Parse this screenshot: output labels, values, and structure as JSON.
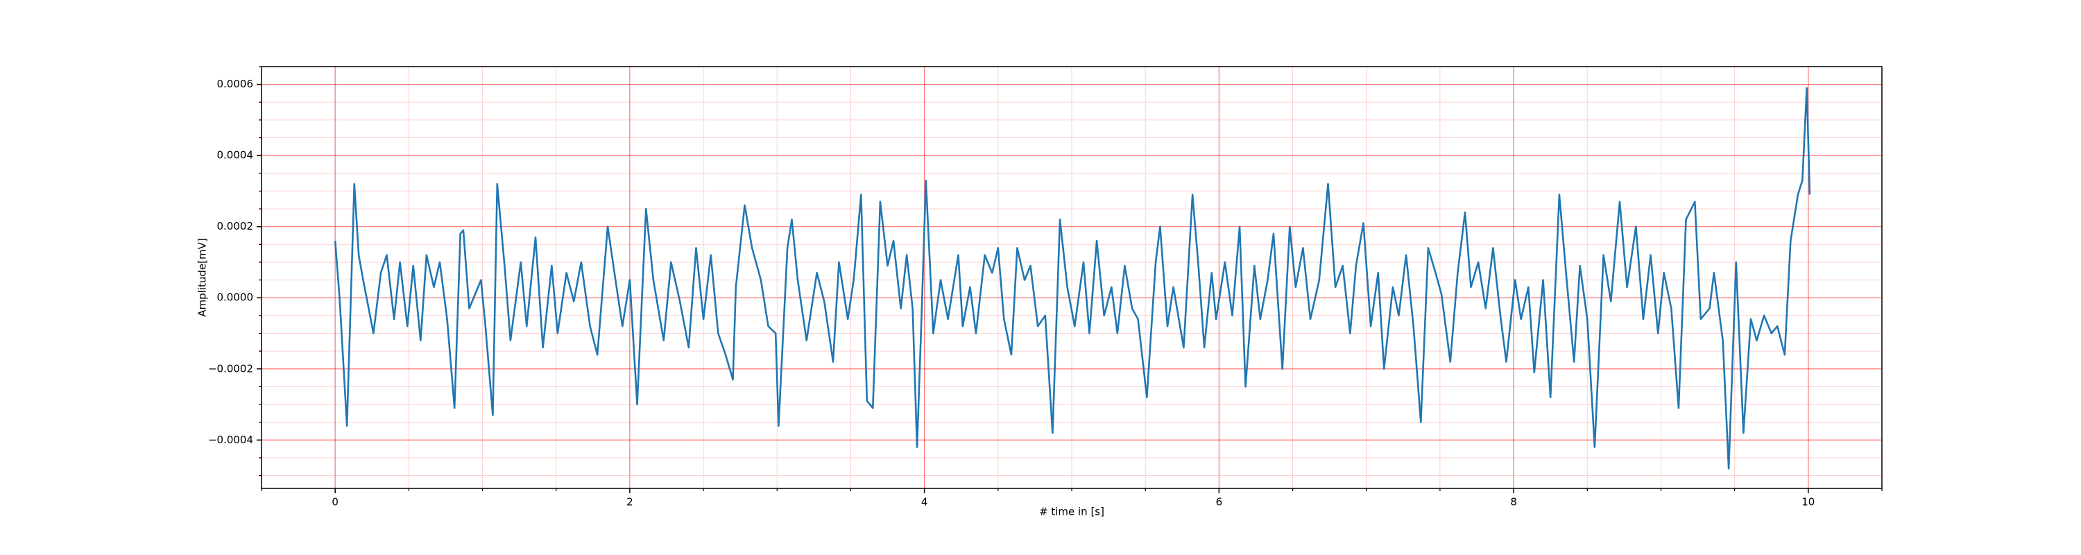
{
  "chart_data": {
    "type": "line",
    "xlabel": "# time in [s]",
    "ylabel": "Amplitude[mV]",
    "color": "#1f77b4",
    "major_grid_color": "#ff0000",
    "minor_grid_color": "#ffb3b3",
    "grid": true,
    "minor_grid": true,
    "xlim": [
      -0.5,
      10.5
    ],
    "ylim": [
      -0.000536,
      0.00065
    ],
    "xticks": [
      0,
      2,
      4,
      6,
      8,
      10
    ],
    "yticks": [
      {
        "value": -0.0004,
        "label": "−0.0004"
      },
      {
        "value": -0.0002,
        "label": "−0.0002"
      },
      {
        "value": 0,
        "label": "0.0000"
      },
      0.0002,
      0.0004,
      0.0006
    ],
    "xticks_minor": [
      -0.5,
      0.5,
      1,
      1.5,
      2.5,
      3,
      3.5,
      4.5,
      5,
      5.5,
      6.5,
      7,
      7.5,
      8.5,
      9,
      9.5,
      10.5
    ],
    "yticks_minor": [
      -0.0005,
      -0.00045,
      -0.00035,
      -0.0003,
      -0.00025,
      -0.00015,
      -0.0001,
      -5e-05,
      5e-05,
      0.0001,
      0.00015,
      0.00025,
      0.0003,
      0.00035,
      0.00045,
      0.0005,
      0.00055,
      0.00065
    ],
    "x": [
      0,
      0.03,
      0.08,
      0.13,
      0.16,
      0.19,
      0.26,
      0.31,
      0.35,
      0.4,
      0.44,
      0.49,
      0.53,
      0.58,
      0.62,
      0.67,
      0.71,
      0.76,
      0.81,
      0.85,
      0.87,
      0.91,
      0.99,
      1.02,
      1.07,
      1.1,
      1.15,
      1.19,
      1.26,
      1.3,
      1.36,
      1.41,
      1.47,
      1.51,
      1.57,
      1.62,
      1.67,
      1.73,
      1.78,
      1.85,
      1.91,
      1.95,
      2.0,
      2.05,
      2.11,
      2.16,
      2.23,
      2.28,
      2.34,
      2.4,
      2.45,
      2.5,
      2.55,
      2.6,
      2.65,
      2.7,
      2.72,
      2.78,
      2.83,
      2.89,
      2.94,
      2.99,
      3.01,
      3.07,
      3.1,
      3.14,
      3.2,
      3.27,
      3.32,
      3.38,
      3.42,
      3.48,
      3.52,
      3.57,
      3.61,
      3.65,
      3.7,
      3.75,
      3.79,
      3.84,
      3.88,
      3.92,
      3.95,
      3.98,
      4.01,
      4.06,
      4.11,
      4.16,
      4.23,
      4.26,
      4.31,
      4.35,
      4.41,
      4.46,
      4.5,
      4.54,
      4.59,
      4.63,
      4.68,
      4.72,
      4.77,
      4.82,
      4.87,
      4.92,
      4.97,
      5.02,
      5.08,
      5.12,
      5.17,
      5.22,
      5.27,
      5.31,
      5.36,
      5.41,
      5.45,
      5.51,
      5.57,
      5.6,
      5.65,
      5.69,
      5.76,
      5.82,
      5.86,
      5.9,
      5.95,
      5.98,
      6.04,
      6.09,
      6.14,
      6.18,
      6.24,
      6.28,
      6.33,
      6.37,
      6.43,
      6.48,
      6.52,
      6.57,
      6.62,
      6.68,
      6.74,
      6.79,
      6.84,
      6.89,
      6.93,
      6.98,
      7.03,
      7.08,
      7.12,
      7.18,
      7.22,
      7.27,
      7.32,
      7.37,
      7.42,
      7.47,
      7.51,
      7.57,
      7.62,
      7.67,
      7.71,
      7.76,
      7.81,
      7.86,
      7.91,
      7.95,
      8.01,
      8.05,
      8.1,
      8.14,
      8.2,
      8.25,
      8.31,
      8.36,
      8.41,
      8.45,
      8.5,
      8.55,
      8.61,
      8.66,
      8.72,
      8.77,
      8.83,
      8.88,
      8.93,
      8.98,
      9.02,
      9.07,
      9.12,
      9.17,
      9.23,
      9.27,
      9.33,
      9.36,
      9.42,
      9.46,
      9.51,
      9.56,
      9.61,
      9.65,
      9.7,
      9.75,
      9.79,
      9.84,
      9.88,
      9.93,
      9.96,
      9.99,
      10.01
    ],
    "values": [
      0.00016,
      0,
      -0.00036,
      0.00032,
      0.00012,
      5e-05,
      -0.0001,
      7e-05,
      0.00012,
      -6e-05,
      0.0001,
      -8e-05,
      9e-05,
      -0.00012,
      0.00012,
      3e-05,
      0.0001,
      -6e-05,
      -0.00031,
      0.00018,
      0.00019,
      -3e-05,
      5e-05,
      -8e-05,
      -0.00033,
      0.00032,
      9e-05,
      -0.00012,
      0.0001,
      -8e-05,
      0.00017,
      -0.00014,
      9e-05,
      -0.0001,
      7e-05,
      -1e-05,
      0.0001,
      -8e-05,
      -0.00016,
      0.0002,
      3e-05,
      -8e-05,
      5e-05,
      -0.0003,
      0.00025,
      5e-05,
      -0.00012,
      0.0001,
      -1e-05,
      -0.00014,
      0.00014,
      -6e-05,
      0.00012,
      -0.0001,
      -0.00016,
      -0.00023,
      3e-05,
      0.00026,
      0.00014,
      5e-05,
      -8e-05,
      -0.0001,
      -0.00036,
      0.00014,
      0.00022,
      5e-05,
      -0.00012,
      7e-05,
      -1e-05,
      -0.00018,
      0.0001,
      -6e-05,
      5e-05,
      0.00029,
      -0.00029,
      -0.00031,
      0.00027,
      9e-05,
      0.00016,
      -3e-05,
      0.00012,
      -3e-05,
      -0.00042,
      -6e-05,
      0.00033,
      -0.0001,
      5e-05,
      -6e-05,
      0.00012,
      -8e-05,
      3e-05,
      -0.0001,
      0.00012,
      7e-05,
      0.00014,
      -6e-05,
      -0.00016,
      0.00014,
      5e-05,
      9e-05,
      -8e-05,
      -5e-05,
      -0.00038,
      0.00022,
      3e-05,
      -8e-05,
      0.0001,
      -0.0001,
      0.00016,
      -5e-05,
      3e-05,
      -0.0001,
      9e-05,
      -3e-05,
      -6e-05,
      -0.00028,
      0.0001,
      0.0002,
      -8e-05,
      3e-05,
      -0.00014,
      0.00029,
      9e-05,
      -0.00014,
      7e-05,
      -6e-05,
      0.0001,
      -5e-05,
      0.0002,
      -0.00025,
      9e-05,
      -6e-05,
      5e-05,
      0.00018,
      -0.0002,
      0.0002,
      3e-05,
      0.00014,
      -6e-05,
      5e-05,
      0.00032,
      3e-05,
      9e-05,
      -0.0001,
      9e-05,
      0.00021,
      -8e-05,
      7e-05,
      -0.0002,
      3e-05,
      -5e-05,
      0.00012,
      -8e-05,
      -0.00035,
      0.00014,
      7e-05,
      1e-05,
      -0.00018,
      7e-05,
      0.00024,
      3e-05,
      0.0001,
      -3e-05,
      0.00014,
      -5e-05,
      -0.00018,
      5e-05,
      -6e-05,
      3e-05,
      -0.00021,
      5e-05,
      -0.00028,
      0.00029,
      5e-05,
      -0.00018,
      9e-05,
      -6e-05,
      -0.00042,
      0.00012,
      -1e-05,
      0.00027,
      3e-05,
      0.0002,
      -6e-05,
      0.00012,
      -0.0001,
      7e-05,
      -3e-05,
      -0.00031,
      0.00022,
      0.00027,
      -6e-05,
      -3e-05,
      7e-05,
      -0.00012,
      -0.00048,
      0.0001,
      -0.00038,
      -6e-05,
      -0.00012,
      -5e-05,
      -0.0001,
      -8e-05,
      -0.00016,
      0.00016,
      0.00029,
      0.00033,
      0.00059,
      0.00029
    ]
  }
}
